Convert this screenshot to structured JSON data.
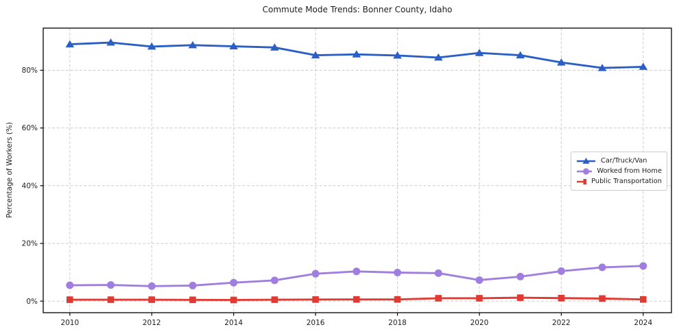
{
  "figure": {
    "title": "Commute Mode Trends: Bonner County, Idaho",
    "ylabel": "Percentage of Workers (%)"
  },
  "colors": {
    "background": "#ffffff",
    "spine": "#000000",
    "grid": "#cccccc",
    "text": "#1c1c1c",
    "legend_border": "#cccccc",
    "car_truck_van": "#2b5fc4",
    "worked_from_home": "#a07ee0",
    "public_transportation": "#e03a33"
  },
  "chart_data": {
    "type": "line",
    "title": "Commute Mode Trends: Bonner County, Idaho",
    "xlabel": "",
    "ylabel": "Percentage of Workers (%)",
    "x": [
      2010,
      2011,
      2012,
      2013,
      2014,
      2015,
      2016,
      2017,
      2018,
      2019,
      2020,
      2021,
      2022,
      2023,
      2024
    ],
    "x_tick_values": [
      2010,
      2012,
      2014,
      2016,
      2018,
      2020,
      2022,
      2024
    ],
    "x_tick_labels": [
      "2010",
      "2012",
      "2014",
      "2016",
      "2018",
      "2020",
      "2022",
      "2024"
    ],
    "y_tick_values": [
      0,
      20,
      40,
      60,
      80
    ],
    "y_tick_labels": [
      "0%",
      "20%",
      "40%",
      "60%",
      "80%"
    ],
    "xlim": [
      2009.35,
      2024.69
    ],
    "ylim": [
      -4,
      94.6
    ],
    "grid": true,
    "grid_style": "dashed",
    "legend_position": "center right",
    "series": [
      {
        "name": "Car/Truck/Van",
        "marker": "triangle",
        "color": "#2b5fc4",
        "values": [
          89.0,
          89.6,
          88.2,
          88.7,
          88.3,
          87.9,
          85.2,
          85.5,
          85.1,
          84.4,
          86.0,
          85.2,
          82.7,
          80.8,
          81.2
        ]
      },
      {
        "name": "Worked from Home",
        "marker": "circle",
        "color": "#a07ee0",
        "values": [
          5.5,
          5.6,
          5.2,
          5.4,
          6.4,
          7.2,
          9.5,
          10.3,
          9.9,
          9.7,
          7.3,
          8.5,
          10.4,
          11.7,
          12.2
        ]
      },
      {
        "name": "Public Transportation",
        "marker": "square",
        "color": "#e03a33",
        "values": [
          0.5,
          0.5,
          0.5,
          0.45,
          0.4,
          0.5,
          0.55,
          0.6,
          0.6,
          1.0,
          1.0,
          1.2,
          1.05,
          0.9,
          0.6
        ]
      }
    ]
  }
}
